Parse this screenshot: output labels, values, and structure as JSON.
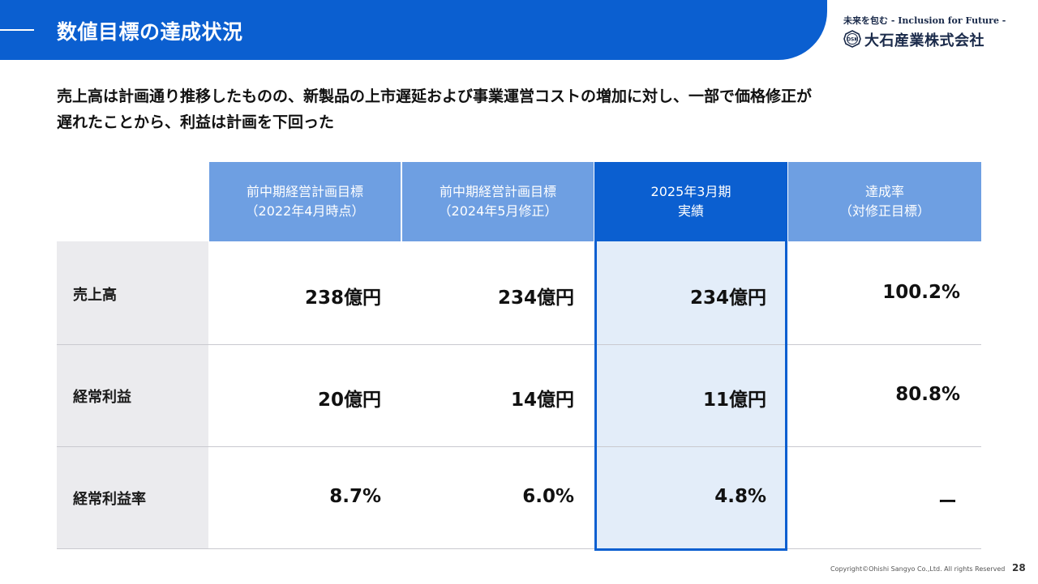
{
  "header": {
    "title": "数値目標の達成状況"
  },
  "logo": {
    "tagline": "未来を包む - Inclusion for Future -",
    "mark_text": "OSK",
    "company": "大石産業株式会社"
  },
  "lead": {
    "line1": "売上高は計画通り推移したものの、新製品の上市遅延および事業運営コストの増加に対し、一部で価格修正が",
    "line2": "遅れたことから、利益は計画を下回った"
  },
  "table": {
    "columns": [
      {
        "line1": "前中期経営計画目標",
        "line2": "（2022年4月時点）"
      },
      {
        "line1": "前中期経営計画目標",
        "line2": "（2024年5月修正）"
      },
      {
        "line1": "2025年3月期",
        "line2": "実績"
      },
      {
        "line1": "達成率",
        "line2": "（対修正目標）"
      }
    ],
    "rows": [
      {
        "label": "売上高",
        "values": [
          "238億円",
          "234億円",
          "234億円",
          "100.2%"
        ]
      },
      {
        "label": "経常利益",
        "values": [
          "20億円",
          "14億円",
          "11億円",
          "80.8%"
        ]
      },
      {
        "label": "経常利益率",
        "values": [
          "8.7%",
          "6.0%",
          "4.8%",
          "ー"
        ]
      }
    ]
  },
  "footer": {
    "copyright": "Copyright©Ohishi Sangyo Co.,Ltd. All rights Reserved",
    "page": "28"
  },
  "colors": {
    "brand_blue": "#0b5fd0",
    "header_cell": "#6e9fe2",
    "highlight_fill": "#e3edf9",
    "label_fill": "#ebebee"
  }
}
